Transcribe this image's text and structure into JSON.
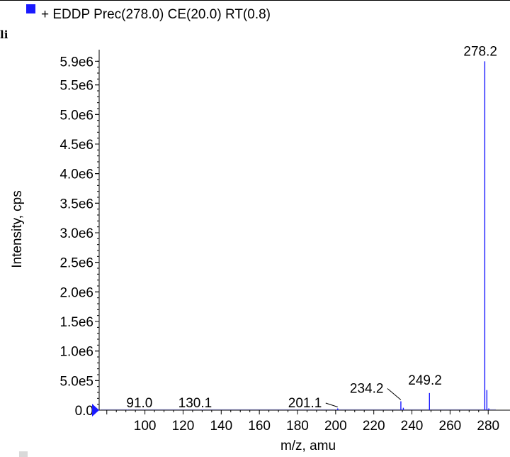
{
  "legend": {
    "label": "+ EDDP Prec(278.0) CE(20.0) RT(0.8)",
    "color": "#1a1aff"
  },
  "corner_label": "li",
  "chart_data": {
    "type": "bar",
    "title": "",
    "xlabel": "m/z, amu",
    "ylabel": "Intensity, cps",
    "xlim": [
      76,
      284
    ],
    "ylim": [
      0,
      6000000
    ],
    "x_ticks": [
      100,
      120,
      140,
      160,
      180,
      200,
      220,
      240,
      260,
      280
    ],
    "y_ticks": [
      {
        "value": 0,
        "label": "0.0"
      },
      {
        "value": 500000,
        "label": "5.0e5"
      },
      {
        "value": 1000000,
        "label": "1.0e6"
      },
      {
        "value": 1500000,
        "label": "1.5e6"
      },
      {
        "value": 2000000,
        "label": "2.0e6"
      },
      {
        "value": 2500000,
        "label": "2.5e6"
      },
      {
        "value": 3000000,
        "label": "3.0e6"
      },
      {
        "value": 3500000,
        "label": "3.5e6"
      },
      {
        "value": 4000000,
        "label": "4.0e6"
      },
      {
        "value": 4500000,
        "label": "4.5e6"
      },
      {
        "value": 5000000,
        "label": "5.0e6"
      },
      {
        "value": 5500000,
        "label": "5.5e6"
      },
      {
        "value": 5900000,
        "label": "5.9e6"
      }
    ],
    "series": [
      {
        "color": "#1a1aff",
        "peaks": [
          {
            "x": 91.0,
            "y": 5000
          },
          {
            "x": 130.1,
            "y": 5000
          },
          {
            "x": 201.1,
            "y": 30000
          },
          {
            "x": 234.2,
            "y": 150000
          },
          {
            "x": 235.5,
            "y": 40000
          },
          {
            "x": 249.2,
            "y": 290000
          },
          {
            "x": 278.2,
            "y": 5900000
          },
          {
            "x": 279.3,
            "y": 340000
          },
          {
            "x": 280.3,
            "y": 30000
          }
        ]
      }
    ],
    "annotations": [
      {
        "text": "91.0",
        "x": 91.0
      },
      {
        "text": "130.1",
        "x": 130.1
      },
      {
        "text": "201.1",
        "x": 201.1
      },
      {
        "text": "234.2",
        "x": 234.2
      },
      {
        "text": "249.2",
        "x": 249.2
      },
      {
        "text": "278.2",
        "x": 278.2
      }
    ]
  }
}
